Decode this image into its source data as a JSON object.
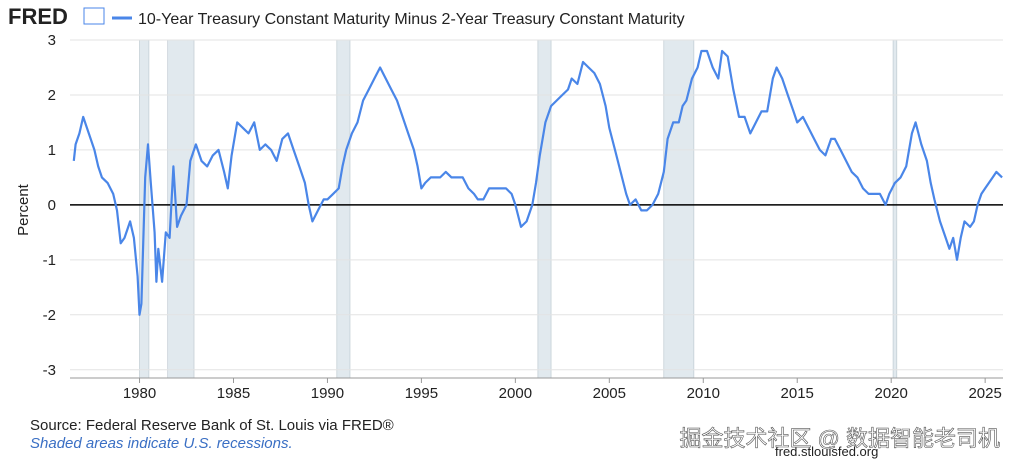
{
  "chart_data": {
    "type": "line",
    "logo": "FRED",
    "title": "10-Year Treasury Constant Maturity Minus 2-Year Treasury Constant Maturity",
    "y_label": "Percent",
    "source": "Source: Federal Reserve Bank of St. Louis via FRED®",
    "note": "Shaded areas indicate U.S. recessions.",
    "url": "fred.stlouisfed.org",
    "watermark": "掘金技术社区 @ 数据智能老司机",
    "xlim": [
      1976.3,
      2025.95
    ],
    "ylim": [
      -3.15,
      3
    ],
    "xticks": [
      1980,
      1985,
      1990,
      1995,
      2000,
      2005,
      2010,
      2015,
      2020,
      2025
    ],
    "yticks": [
      -3,
      -2,
      -1,
      0,
      1,
      2,
      3
    ],
    "grid": true,
    "recessions": [
      [
        1980.0,
        1980.5
      ],
      [
        1981.5,
        1982.9
      ],
      [
        1990.5,
        1991.2
      ],
      [
        2001.2,
        2001.9
      ],
      [
        2007.9,
        2009.5
      ],
      [
        2020.1,
        2020.3
      ]
    ],
    "series": [
      {
        "name": "10-Year Treasury Constant Maturity Minus 2-Year Treasury Constant Maturity",
        "color": "#4a86e8",
        "x": [
          1976.5,
          1976.6,
          1976.8,
          1977.0,
          1977.3,
          1977.6,
          1977.8,
          1978.0,
          1978.3,
          1978.6,
          1978.8,
          1979.0,
          1979.2,
          1979.5,
          1979.7,
          1979.9,
          1980.0,
          1980.1,
          1980.3,
          1980.45,
          1980.6,
          1980.8,
          1980.9,
          1981.0,
          1981.2,
          1981.4,
          1981.6,
          1981.8,
          1982.0,
          1982.2,
          1982.5,
          1982.7,
          1983.0,
          1983.3,
          1983.6,
          1983.9,
          1984.2,
          1984.5,
          1984.7,
          1984.9,
          1985.2,
          1985.5,
          1985.8,
          1986.1,
          1986.4,
          1986.7,
          1987.0,
          1987.3,
          1987.6,
          1987.9,
          1988.2,
          1988.5,
          1988.8,
          1989.0,
          1989.2,
          1989.5,
          1989.8,
          1990.0,
          1990.3,
          1990.6,
          1990.8,
          1991.0,
          1991.3,
          1991.6,
          1991.9,
          1992.2,
          1992.5,
          1992.8,
          1993.1,
          1993.4,
          1993.7,
          1994.0,
          1994.3,
          1994.6,
          1994.8,
          1995.0,
          1995.2,
          1995.5,
          1995.8,
          1996.0,
          1996.3,
          1996.6,
          1996.9,
          1997.2,
          1997.5,
          1997.8,
          1998.0,
          1998.3,
          1998.6,
          1998.9,
          1999.2,
          1999.5,
          1999.8,
          2000.0,
          2000.3,
          2000.6,
          2000.9,
          2001.1,
          2001.3,
          2001.6,
          2001.9,
          2002.2,
          2002.5,
          2002.8,
          2003.0,
          2003.3,
          2003.6,
          2003.9,
          2004.2,
          2004.5,
          2004.8,
          2005.0,
          2005.3,
          2005.6,
          2005.9,
          2006.1,
          2006.4,
          2006.7,
          2007.0,
          2007.3,
          2007.6,
          2007.9,
          2008.1,
          2008.4,
          2008.7,
          2008.9,
          2009.1,
          2009.4,
          2009.7,
          2009.9,
          2010.2,
          2010.5,
          2010.8,
          2011.0,
          2011.3,
          2011.6,
          2011.9,
          2012.2,
          2012.5,
          2012.8,
          2013.1,
          2013.4,
          2013.7,
          2013.9,
          2014.2,
          2014.5,
          2014.8,
          2015.0,
          2015.3,
          2015.6,
          2015.9,
          2016.2,
          2016.5,
          2016.8,
          2017.0,
          2017.3,
          2017.6,
          2017.9,
          2018.2,
          2018.5,
          2018.8,
          2019.1,
          2019.4,
          2019.7,
          2019.9,
          2020.2,
          2020.5,
          2020.8,
          2021.1,
          2021.3,
          2021.6,
          2021.9,
          2022.1,
          2022.3,
          2022.6,
          2022.9,
          2023.1,
          2023.3,
          2023.5,
          2023.7,
          2023.9,
          2024.2,
          2024.4,
          2024.6,
          2024.8,
          2025.0,
          2025.2,
          2025.4,
          2025.6,
          2025.9
        ],
        "values": [
          0.8,
          1.1,
          1.3,
          1.6,
          1.3,
          1.0,
          0.7,
          0.5,
          0.4,
          0.2,
          -0.1,
          -0.7,
          -0.6,
          -0.3,
          -0.6,
          -1.3,
          -2.0,
          -1.8,
          0.5,
          1.1,
          0.4,
          -0.5,
          -1.4,
          -0.8,
          -1.4,
          -0.5,
          -0.6,
          0.7,
          -0.4,
          -0.2,
          0.0,
          0.8,
          1.1,
          0.8,
          0.7,
          0.9,
          1.0,
          0.6,
          0.3,
          0.9,
          1.5,
          1.4,
          1.3,
          1.5,
          1.0,
          1.1,
          1.0,
          0.8,
          1.2,
          1.3,
          1.0,
          0.7,
          0.4,
          0.0,
          -0.3,
          -0.1,
          0.1,
          0.1,
          0.2,
          0.3,
          0.7,
          1.0,
          1.3,
          1.5,
          1.9,
          2.1,
          2.3,
          2.5,
          2.3,
          2.1,
          1.9,
          1.6,
          1.3,
          1.0,
          0.7,
          0.3,
          0.4,
          0.5,
          0.5,
          0.5,
          0.6,
          0.5,
          0.5,
          0.5,
          0.3,
          0.2,
          0.1,
          0.1,
          0.3,
          0.3,
          0.3,
          0.3,
          0.2,
          0.0,
          -0.4,
          -0.3,
          0.0,
          0.4,
          0.9,
          1.5,
          1.8,
          1.9,
          2.0,
          2.1,
          2.3,
          2.2,
          2.6,
          2.5,
          2.4,
          2.2,
          1.8,
          1.4,
          1.0,
          0.6,
          0.2,
          0.0,
          0.1,
          -0.1,
          -0.1,
          0.0,
          0.2,
          0.6,
          1.2,
          1.5,
          1.5,
          1.8,
          1.9,
          2.3,
          2.5,
          2.8,
          2.8,
          2.5,
          2.3,
          2.8,
          2.7,
          2.1,
          1.6,
          1.6,
          1.3,
          1.5,
          1.7,
          1.7,
          2.3,
          2.5,
          2.3,
          2.0,
          1.7,
          1.5,
          1.6,
          1.4,
          1.2,
          1.0,
          0.9,
          1.2,
          1.2,
          1.0,
          0.8,
          0.6,
          0.5,
          0.3,
          0.2,
          0.2,
          0.2,
          0.0,
          0.2,
          0.4,
          0.5,
          0.7,
          1.3,
          1.5,
          1.1,
          0.8,
          0.4,
          0.1,
          -0.3,
          -0.6,
          -0.8,
          -0.6,
          -1.0,
          -0.6,
          -0.3,
          -0.4,
          -0.3,
          0.0,
          0.2,
          0.3,
          0.4,
          0.5,
          0.6,
          0.5
        ]
      }
    ]
  }
}
